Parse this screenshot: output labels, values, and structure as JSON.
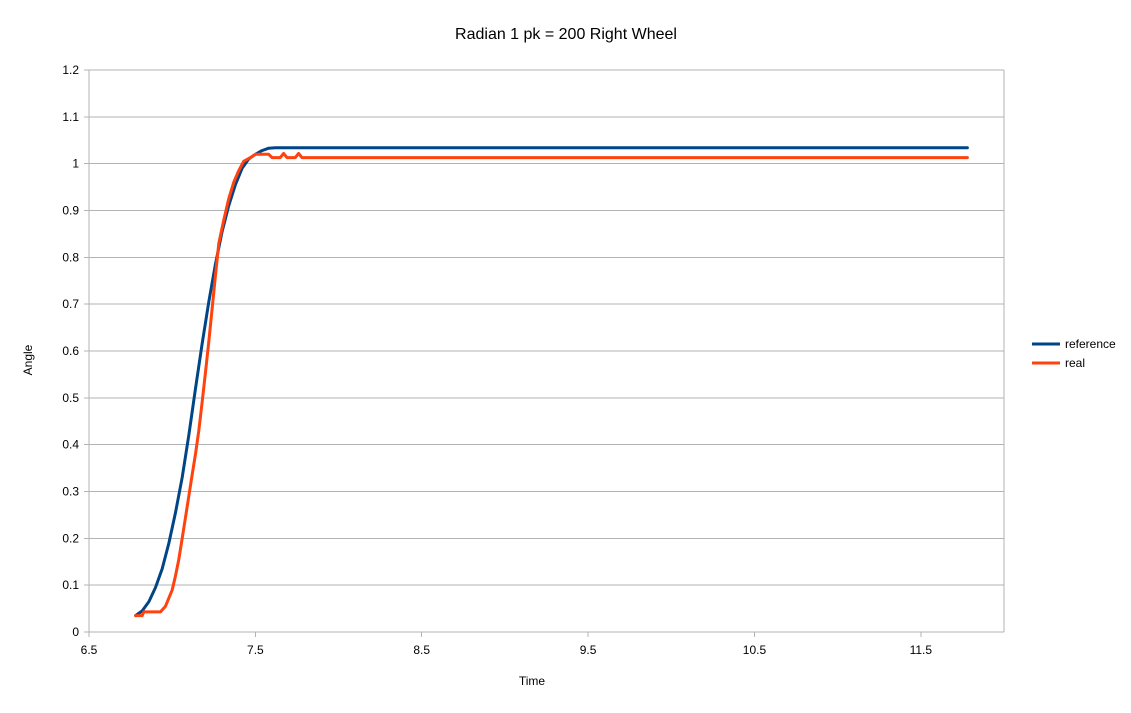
{
  "chart_data": {
    "type": "line",
    "title": "Radian 1 pk = 200 Right Wheel",
    "xlabel": "Time",
    "ylabel": "Angle",
    "xlim": [
      6.5,
      12.0
    ],
    "ylim": [
      0,
      1.2
    ],
    "x_ticks": [
      "6.5",
      "7.5",
      "8.5",
      "9.5",
      "10.5",
      "11.5"
    ],
    "x_tick_values": [
      6.5,
      7.5,
      8.5,
      9.5,
      10.5,
      11.5
    ],
    "y_ticks": [
      "0",
      "0.1",
      "0.2",
      "0.3",
      "0.4",
      "0.5",
      "0.6",
      "0.7",
      "0.8",
      "0.9",
      "1",
      "1.1",
      "1.2"
    ],
    "y_tick_values": [
      0,
      0.1,
      0.2,
      0.3,
      0.4,
      0.5,
      0.6,
      0.7,
      0.8,
      0.9,
      1.0,
      1.1,
      1.2
    ],
    "grid": "horizontal",
    "legend_position": "right",
    "series": [
      {
        "name": "reference",
        "color": "#004586",
        "points": [
          [
            6.78,
            0.035
          ],
          [
            6.82,
            0.045
          ],
          [
            6.86,
            0.065
          ],
          [
            6.9,
            0.095
          ],
          [
            6.94,
            0.135
          ],
          [
            6.98,
            0.19
          ],
          [
            7.02,
            0.255
          ],
          [
            7.06,
            0.33
          ],
          [
            7.1,
            0.42
          ],
          [
            7.14,
            0.52
          ],
          [
            7.18,
            0.615
          ],
          [
            7.22,
            0.705
          ],
          [
            7.26,
            0.785
          ],
          [
            7.3,
            0.855
          ],
          [
            7.34,
            0.91
          ],
          [
            7.38,
            0.955
          ],
          [
            7.42,
            0.99
          ],
          [
            7.46,
            1.01
          ],
          [
            7.5,
            1.02
          ],
          [
            7.54,
            1.028
          ],
          [
            7.58,
            1.033
          ],
          [
            7.62,
            1.034
          ],
          [
            8.0,
            1.034
          ],
          [
            9.0,
            1.034
          ],
          [
            10.0,
            1.034
          ],
          [
            11.0,
            1.034
          ],
          [
            11.78,
            1.034
          ]
        ]
      },
      {
        "name": "real",
        "color": "#ff420e",
        "points": [
          [
            6.78,
            0.035
          ],
          [
            6.82,
            0.035
          ],
          [
            6.83,
            0.043
          ],
          [
            6.93,
            0.043
          ],
          [
            6.96,
            0.055
          ],
          [
            7.0,
            0.09
          ],
          [
            7.02,
            0.12
          ],
          [
            7.04,
            0.155
          ],
          [
            7.06,
            0.2
          ],
          [
            7.08,
            0.245
          ],
          [
            7.1,
            0.29
          ],
          [
            7.12,
            0.335
          ],
          [
            7.14,
            0.38
          ],
          [
            7.16,
            0.43
          ],
          [
            7.18,
            0.49
          ],
          [
            7.2,
            0.555
          ],
          [
            7.22,
            0.62
          ],
          [
            7.24,
            0.69
          ],
          [
            7.26,
            0.76
          ],
          [
            7.28,
            0.83
          ],
          [
            7.31,
            0.88
          ],
          [
            7.34,
            0.925
          ],
          [
            7.37,
            0.96
          ],
          [
            7.4,
            0.985
          ],
          [
            7.43,
            1.005
          ],
          [
            7.47,
            1.013
          ],
          [
            7.5,
            1.02
          ],
          [
            7.58,
            1.02
          ],
          [
            7.6,
            1.013
          ],
          [
            7.65,
            1.013
          ],
          [
            7.67,
            1.022
          ],
          [
            7.69,
            1.013
          ],
          [
            7.74,
            1.013
          ],
          [
            7.76,
            1.022
          ],
          [
            7.78,
            1.013
          ],
          [
            8.5,
            1.013
          ],
          [
            9.5,
            1.013
          ],
          [
            10.5,
            1.013
          ],
          [
            11.78,
            1.013
          ]
        ]
      }
    ]
  }
}
